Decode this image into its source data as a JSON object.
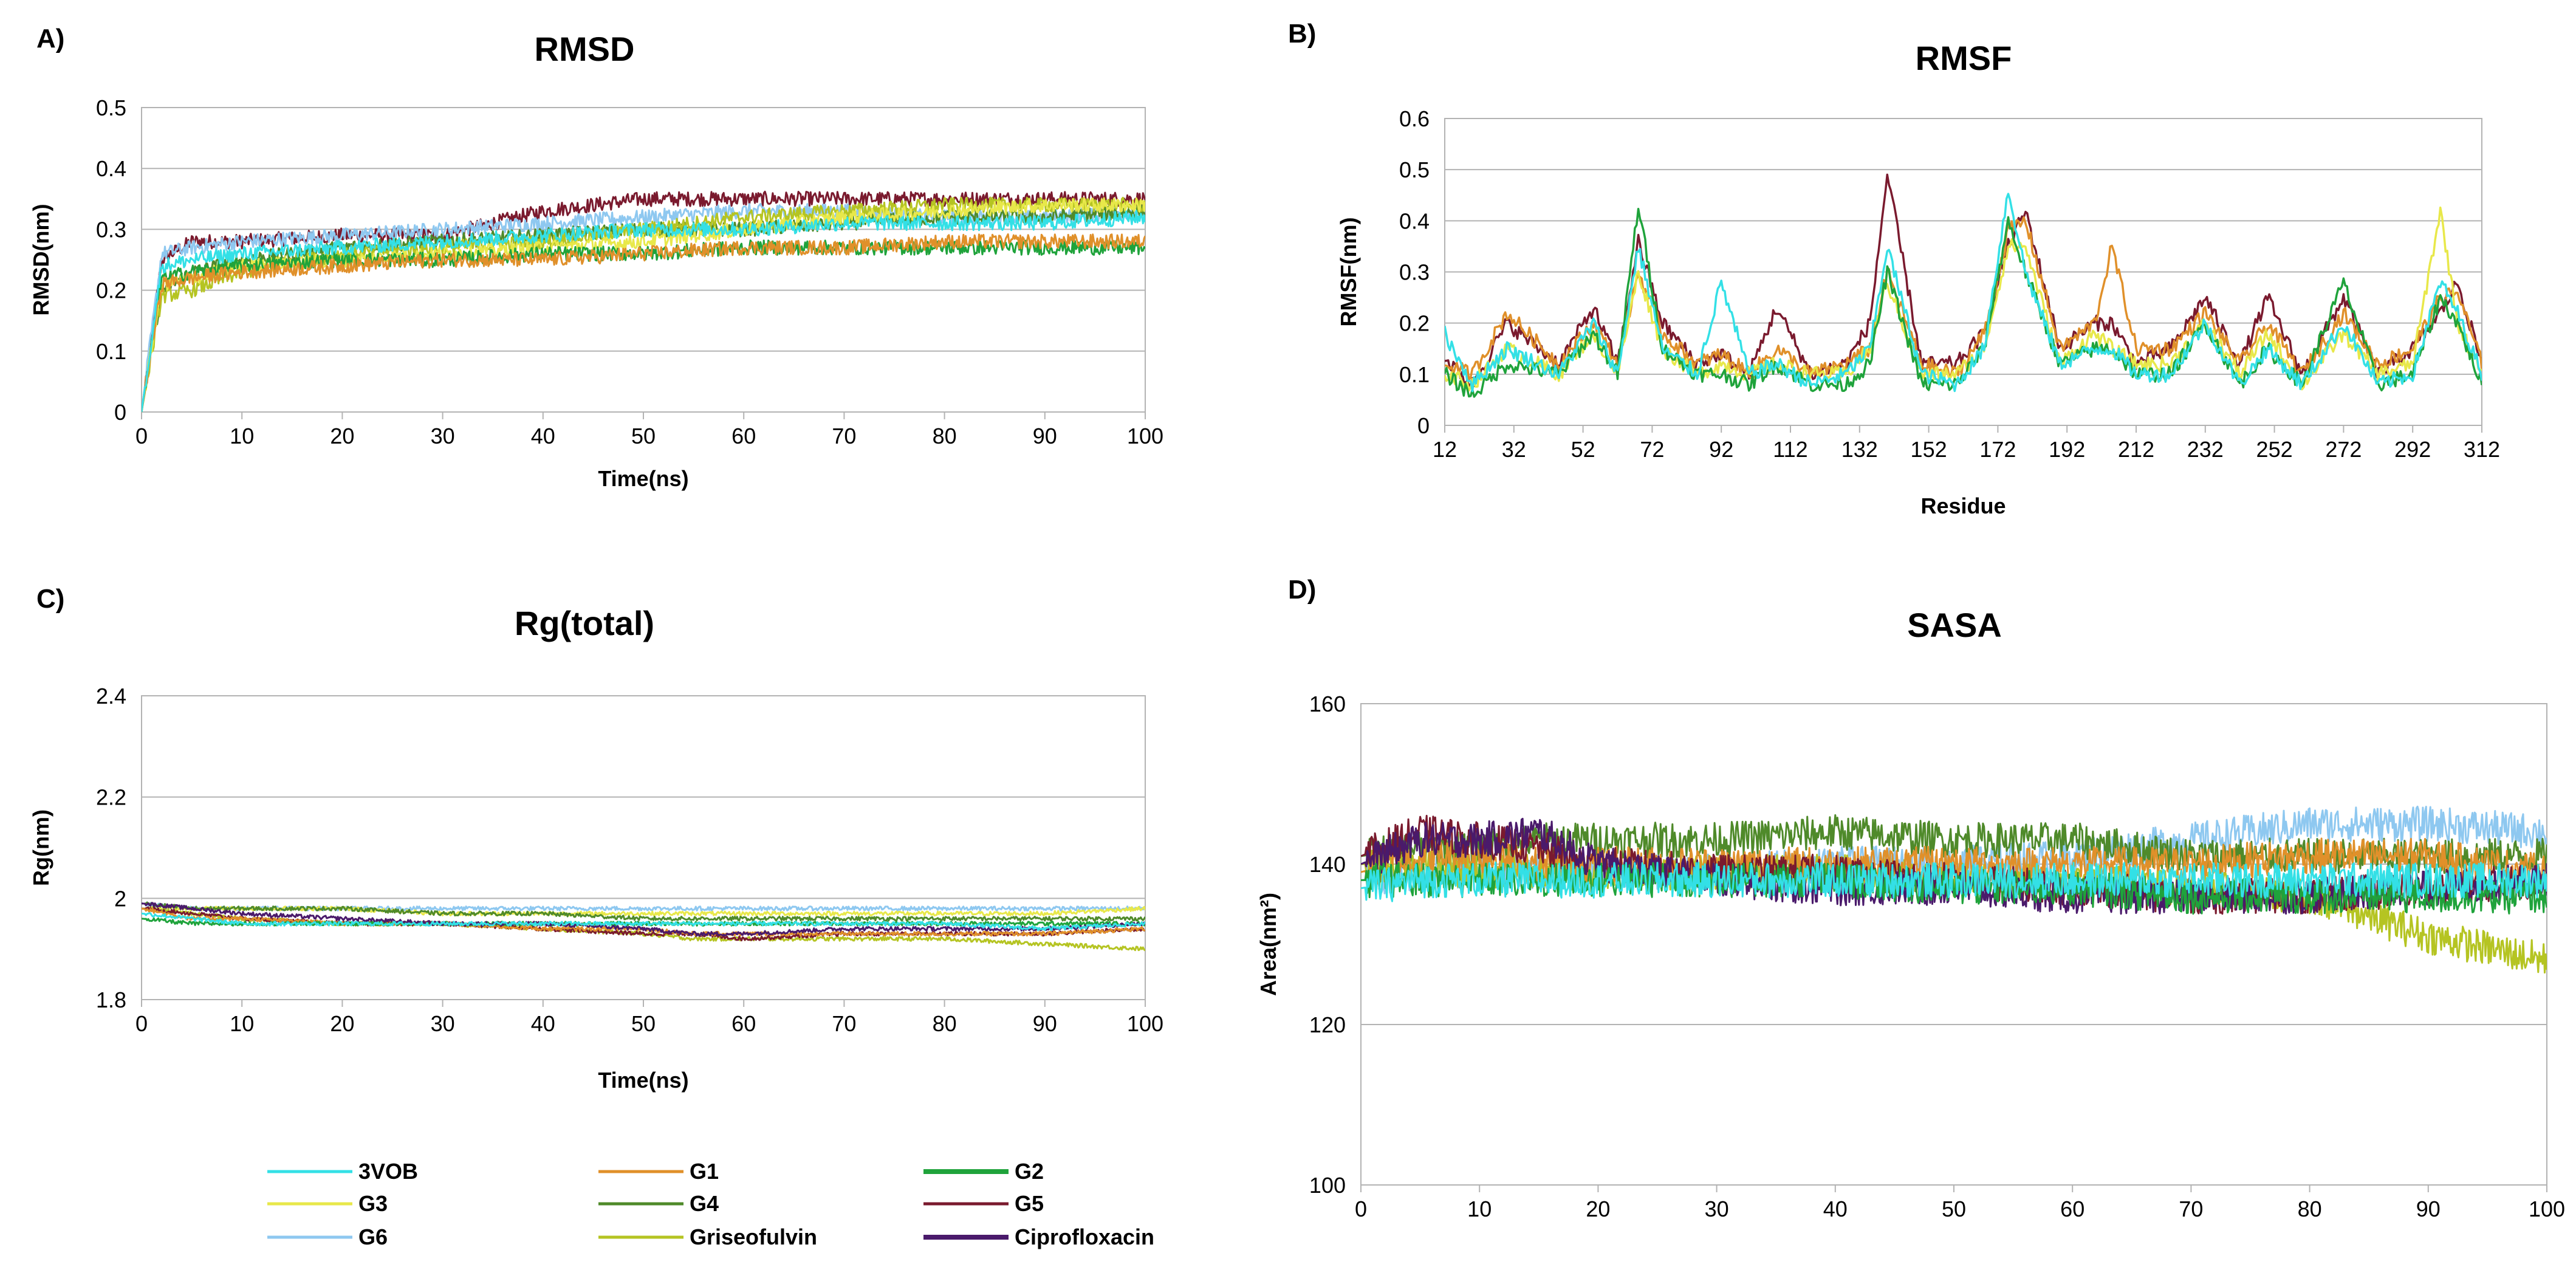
{
  "figure": {
    "panel_letters": [
      "A)",
      "B)",
      "C)",
      "D)"
    ]
  },
  "legend": {
    "entries": [
      {
        "name": "3VOB",
        "color": "#33e0e6"
      },
      {
        "name": "G1",
        "color": "#e0902a"
      },
      {
        "name": "G2",
        "color": "#1fa33b"
      },
      {
        "name": "G3",
        "color": "#e8e84a"
      },
      {
        "name": "G4",
        "color": "#4f8a2a"
      },
      {
        "name": "G5",
        "color": "#7a1a2e"
      },
      {
        "name": "G6",
        "color": "#8ec8f0"
      },
      {
        "name": "Griseofulvin",
        "color": "#b5c422"
      },
      {
        "name": "Ciprofloxacin",
        "color": "#4a1a6b"
      }
    ]
  },
  "chart_data": [
    {
      "id": "rmsd",
      "panel": "A)",
      "type": "line",
      "title": "RMSD",
      "xlabel": "Time(ns)",
      "ylabel": "RMSD(nm)",
      "xlim": [
        0,
        100
      ],
      "ylim": [
        0,
        0.5
      ],
      "grid": "horizontal",
      "xticks": [
        "0",
        "10",
        "20",
        "30",
        "40",
        "50",
        "60",
        "70",
        "80",
        "90",
        "100"
      ],
      "yticks": [
        "0",
        "0.1",
        "0.2",
        "0.3",
        "0.4",
        "0.5"
      ],
      "x_sampled": [
        0,
        2,
        5,
        10,
        20,
        30,
        40,
        50,
        60,
        70,
        80,
        90,
        100
      ],
      "series": [
        {
          "name": "G5",
          "values": [
            0.0,
            0.25,
            0.28,
            0.28,
            0.29,
            0.29,
            0.33,
            0.35,
            0.35,
            0.35,
            0.35,
            0.35,
            0.35
          ]
        },
        {
          "name": "G6",
          "values": [
            0.0,
            0.26,
            0.27,
            0.28,
            0.29,
            0.3,
            0.31,
            0.32,
            0.33,
            0.33,
            0.32,
            0.32,
            0.33
          ]
        },
        {
          "name": "G4",
          "values": [
            0.0,
            0.2,
            0.23,
            0.25,
            0.27,
            0.28,
            0.29,
            0.3,
            0.3,
            0.31,
            0.32,
            0.32,
            0.33
          ]
        },
        {
          "name": "Griseofulvin",
          "values": [
            0.0,
            0.19,
            0.2,
            0.23,
            0.26,
            0.27,
            0.28,
            0.3,
            0.32,
            0.33,
            0.34,
            0.34,
            0.34
          ]
        },
        {
          "name": "G3",
          "values": [
            0.0,
            0.21,
            0.22,
            0.24,
            0.25,
            0.26,
            0.27,
            0.28,
            0.3,
            0.32,
            0.33,
            0.34,
            0.34
          ]
        },
        {
          "name": "G2",
          "values": [
            0.0,
            0.22,
            0.23,
            0.24,
            0.25,
            0.25,
            0.26,
            0.26,
            0.27,
            0.27,
            0.27,
            0.27,
            0.27
          ]
        },
        {
          "name": "G1",
          "values": [
            0.0,
            0.21,
            0.22,
            0.23,
            0.24,
            0.25,
            0.25,
            0.26,
            0.27,
            0.27,
            0.28,
            0.28,
            0.28
          ]
        },
        {
          "name": "3VOB",
          "values": [
            0.0,
            0.24,
            0.25,
            0.26,
            0.27,
            0.28,
            0.29,
            0.3,
            0.3,
            0.31,
            0.31,
            0.31,
            0.32
          ]
        }
      ]
    },
    {
      "id": "rmsf",
      "panel": "B)",
      "type": "line",
      "title": "RMSF",
      "xlabel": "Residue",
      "ylabel": "RMSF(nm)",
      "xlim": [
        12,
        312
      ],
      "ylim": [
        0,
        0.6
      ],
      "grid": "horizontal",
      "xticks": [
        "12",
        "32",
        "52",
        "72",
        "92",
        "112",
        "132",
        "152",
        "172",
        "192",
        "212",
        "232",
        "252",
        "272",
        "292",
        "312"
      ],
      "yticks": [
        "0",
        "0.1",
        "0.2",
        "0.3",
        "0.4",
        "0.5",
        "0.6"
      ],
      "x_sampled": [
        12,
        20,
        30,
        45,
        55,
        62,
        68,
        75,
        85,
        92,
        100,
        108,
        118,
        128,
        135,
        140,
        150,
        160,
        168,
        175,
        180,
        190,
        200,
        205,
        212,
        222,
        232,
        242,
        250,
        260,
        272,
        282,
        292,
        300,
        305,
        312
      ],
      "series": [
        {
          "name": "G5",
          "values": [
            0.13,
            0.08,
            0.2,
            0.12,
            0.23,
            0.12,
            0.36,
            0.2,
            0.12,
            0.14,
            0.1,
            0.23,
            0.1,
            0.12,
            0.2,
            0.49,
            0.12,
            0.12,
            0.18,
            0.35,
            0.42,
            0.15,
            0.2,
            0.2,
            0.12,
            0.15,
            0.25,
            0.12,
            0.25,
            0.1,
            0.25,
            0.1,
            0.15,
            0.22,
            0.28,
            0.12
          ]
        },
        {
          "name": "G1",
          "values": [
            0.12,
            0.1,
            0.22,
            0.12,
            0.2,
            0.12,
            0.3,
            0.18,
            0.12,
            0.14,
            0.1,
            0.15,
            0.1,
            0.12,
            0.15,
            0.3,
            0.12,
            0.1,
            0.18,
            0.38,
            0.4,
            0.15,
            0.2,
            0.35,
            0.15,
            0.15,
            0.22,
            0.12,
            0.2,
            0.1,
            0.22,
            0.12,
            0.15,
            0.25,
            0.26,
            0.12
          ]
        },
        {
          "name": "G3",
          "values": [
            0.1,
            0.08,
            0.15,
            0.1,
            0.18,
            0.1,
            0.3,
            0.15,
            0.1,
            0.12,
            0.1,
            0.12,
            0.1,
            0.1,
            0.15,
            0.28,
            0.1,
            0.1,
            0.15,
            0.35,
            0.35,
            0.12,
            0.18,
            0.15,
            0.12,
            0.12,
            0.2,
            0.1,
            0.18,
            0.08,
            0.18,
            0.1,
            0.12,
            0.42,
            0.2,
            0.1
          ]
        },
        {
          "name": "G2",
          "values": [
            0.1,
            0.06,
            0.12,
            0.1,
            0.18,
            0.1,
            0.43,
            0.15,
            0.1,
            0.1,
            0.08,
            0.12,
            0.08,
            0.08,
            0.12,
            0.3,
            0.08,
            0.08,
            0.15,
            0.4,
            0.3,
            0.12,
            0.15,
            0.15,
            0.1,
            0.1,
            0.2,
            0.08,
            0.15,
            0.08,
            0.28,
            0.08,
            0.1,
            0.25,
            0.2,
            0.08
          ]
        },
        {
          "name": "3VOB",
          "values": [
            0.18,
            0.08,
            0.15,
            0.1,
            0.2,
            0.1,
            0.35,
            0.15,
            0.1,
            0.28,
            0.1,
            0.12,
            0.08,
            0.1,
            0.15,
            0.35,
            0.1,
            0.08,
            0.15,
            0.46,
            0.3,
            0.12,
            0.15,
            0.15,
            0.1,
            0.1,
            0.2,
            0.08,
            0.15,
            0.08,
            0.2,
            0.08,
            0.1,
            0.28,
            0.22,
            0.1
          ]
        }
      ]
    },
    {
      "id": "rg",
      "panel": "C)",
      "type": "line",
      "title": "Rg(total)",
      "xlabel": "Time(ns)",
      "ylabel": "Rg(nm)",
      "xlim": [
        0,
        100
      ],
      "ylim": [
        1.8,
        2.4
      ],
      "grid": "horizontal",
      "xticks": [
        "0",
        "10",
        "20",
        "30",
        "40",
        "50",
        "60",
        "70",
        "80",
        "90",
        "100"
      ],
      "yticks": [
        "1.8",
        "2",
        "2.2",
        "2.4"
      ],
      "x_sampled": [
        0,
        5,
        10,
        20,
        30,
        40,
        50,
        55,
        60,
        70,
        80,
        90,
        100
      ],
      "series": [
        {
          "name": "G6",
          "values": [
            1.99,
            1.98,
            1.98,
            1.98,
            1.98,
            1.98,
            1.98,
            1.98,
            1.98,
            1.98,
            1.98,
            1.98,
            1.98
          ]
        },
        {
          "name": "G3",
          "values": [
            1.98,
            1.98,
            1.98,
            1.98,
            1.97,
            1.97,
            1.97,
            1.97,
            1.97,
            1.97,
            1.97,
            1.97,
            1.98
          ]
        },
        {
          "name": "G4",
          "values": [
            1.99,
            1.98,
            1.98,
            1.98,
            1.97,
            1.97,
            1.96,
            1.96,
            1.96,
            1.96,
            1.96,
            1.96,
            1.96
          ]
        },
        {
          "name": "Griseofulvin",
          "values": [
            1.98,
            1.97,
            1.96,
            1.95,
            1.95,
            1.94,
            1.93,
            1.92,
            1.92,
            1.92,
            1.92,
            1.91,
            1.9
          ]
        },
        {
          "name": "G5",
          "values": [
            1.98,
            1.97,
            1.96,
            1.95,
            1.95,
            1.94,
            1.93,
            1.93,
            1.92,
            1.93,
            1.93,
            1.93,
            1.94
          ]
        },
        {
          "name": "G1",
          "values": [
            1.98,
            1.96,
            1.96,
            1.95,
            1.95,
            1.94,
            1.94,
            1.93,
            1.93,
            1.93,
            1.93,
            1.93,
            1.94
          ]
        },
        {
          "name": "G2",
          "values": [
            1.96,
            1.95,
            1.95,
            1.95,
            1.95,
            1.95,
            1.95,
            1.95,
            1.95,
            1.95,
            1.95,
            1.95,
            1.95
          ]
        },
        {
          "name": "Ciprofloxacin",
          "values": [
            1.99,
            1.98,
            1.97,
            1.96,
            1.95,
            1.95,
            1.94,
            1.93,
            1.93,
            1.94,
            1.94,
            1.94,
            1.95
          ]
        },
        {
          "name": "3VOB",
          "values": [
            1.97,
            1.96,
            1.95,
            1.95,
            1.95,
            1.95,
            1.95,
            1.95,
            1.95,
            1.95,
            1.95,
            1.94,
            1.95
          ]
        }
      ]
    },
    {
      "id": "sasa",
      "panel": "D)",
      "type": "line",
      "title": "SASA",
      "xlabel": "",
      "ylabel": "Area(nm²)",
      "xlim": [
        0,
        100
      ],
      "ylim": [
        100,
        160
      ],
      "grid": "horizontal",
      "xticks": [
        "0",
        "10",
        "20",
        "30",
        "40",
        "50",
        "60",
        "70",
        "80",
        "90",
        "100"
      ],
      "yticks": [
        "100",
        "120",
        "140",
        "160"
      ],
      "x_sampled": [
        0,
        5,
        10,
        15,
        20,
        30,
        40,
        50,
        60,
        70,
        80,
        90,
        100
      ],
      "series": [
        {
          "name": "G6",
          "values": [
            138,
            139,
            139,
            139,
            139,
            139,
            140,
            140,
            141,
            143,
            145,
            145,
            144
          ]
        },
        {
          "name": "G4",
          "values": [
            141,
            142,
            142,
            143,
            143,
            143,
            144,
            143,
            143,
            141,
            141,
            141,
            141
          ]
        },
        {
          "name": "Griseofulvin",
          "values": [
            140,
            140,
            139,
            139,
            139,
            139,
            139,
            138,
            138,
            137,
            136,
            131,
            128
          ]
        },
        {
          "name": "G1",
          "values": [
            139,
            141,
            141,
            140,
            140,
            140,
            140,
            140,
            140,
            140,
            141,
            141,
            139
          ]
        },
        {
          "name": "G5",
          "values": [
            141,
            144,
            143,
            142,
            140,
            139,
            139,
            138,
            137,
            136,
            136,
            137,
            138
          ]
        },
        {
          "name": "Ciprofloxacin",
          "values": [
            140,
            143,
            143,
            144,
            140,
            138,
            137,
            137,
            136,
            136,
            136,
            137,
            138
          ]
        },
        {
          "name": "G2",
          "values": [
            138,
            138,
            138,
            138,
            138,
            138,
            138,
            137,
            137,
            136,
            136,
            136,
            136
          ]
        },
        {
          "name": "3VOB",
          "values": [
            137,
            138,
            138,
            138,
            138,
            138,
            138,
            138,
            138,
            138,
            138,
            138,
            138
          ]
        }
      ]
    }
  ]
}
